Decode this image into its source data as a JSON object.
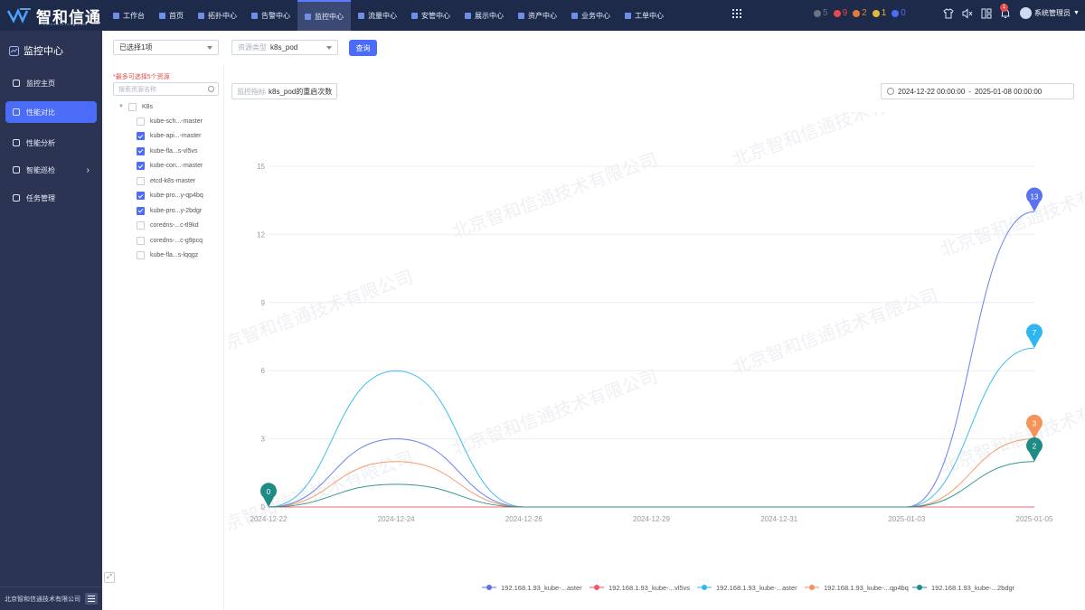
{
  "brand": {
    "name": "智和信通",
    "sub": "zhiheXinTong.com"
  },
  "topnav": [
    {
      "label": "工作台",
      "active": false
    },
    {
      "label": "首页",
      "active": false
    },
    {
      "label": "拓扑中心",
      "active": false
    },
    {
      "label": "告警中心",
      "active": false
    },
    {
      "label": "监控中心",
      "active": true
    },
    {
      "label": "流量中心",
      "active": false
    },
    {
      "label": "安管中心",
      "active": false
    },
    {
      "label": "展示中心",
      "active": false
    },
    {
      "label": "资产中心",
      "active": false
    },
    {
      "label": "业务中心",
      "active": false
    },
    {
      "label": "工单中心",
      "active": false
    }
  ],
  "alerts": [
    {
      "count": "5",
      "color": "#6b7280"
    },
    {
      "count": "9",
      "color": "#e84a4a"
    },
    {
      "count": "2",
      "color": "#e07b3a"
    },
    {
      "count": "1",
      "color": "#e0b83a"
    },
    {
      "count": "0",
      "color": "#4a6cf7"
    }
  ],
  "notif_badge": "1",
  "user": {
    "name": "系统管理员"
  },
  "sidebar": {
    "title": "监控中心",
    "items": [
      {
        "label": "监控主页",
        "active": false
      },
      {
        "label": "性能对比",
        "active": true
      },
      {
        "label": "性能分析",
        "active": false
      },
      {
        "label": "智能巡检",
        "active": false,
        "has_children": true
      },
      {
        "label": "任务管理",
        "active": false
      }
    ],
    "footer": "北京智和信通技术有限公司"
  },
  "filters": {
    "selected": "已选择1项",
    "resource_type_label": "资源类型",
    "resource_type_value": "k8s_pod",
    "query_label": "查询"
  },
  "resources": {
    "warning": "*最多可选择5个资源",
    "search_placeholder": "搜索资源名称",
    "group": "K8s",
    "items": [
      {
        "label": "kube-sch...-master",
        "checked": false
      },
      {
        "label": "kube-api...-master",
        "checked": true
      },
      {
        "label": "kube-fla...s-vl5vs",
        "checked": true
      },
      {
        "label": "kube-con...-master",
        "checked": true
      },
      {
        "label": "etcd-k8s-master",
        "checked": false
      },
      {
        "label": "kube-pro...y-qp4bq",
        "checked": true
      },
      {
        "label": "kube-pro...y-2bdgr",
        "checked": true
      },
      {
        "label": "coredns-...c-tl9kd",
        "checked": false
      },
      {
        "label": "coredns-...c-g9pcq",
        "checked": false
      },
      {
        "label": "kube-fla...s-lqqgz",
        "checked": false
      }
    ]
  },
  "metric": {
    "label": "监控指标",
    "value": "k8s_pod的重启次数"
  },
  "date_range": {
    "start": "2024-12-22 00:00:00",
    "sep": "-",
    "end": "2025-01-08 00:00:00"
  },
  "watermark": "北京智和信通技术有限公司",
  "chart_data": {
    "type": "line",
    "x": [
      "2024-12-22",
      "2024-12-24",
      "2024-12-26",
      "2024-12-29",
      "2024-12-31",
      "2025-01-03",
      "2025-01-05"
    ],
    "ylim": [
      0,
      15
    ],
    "yticks": [
      0,
      3,
      6,
      9,
      12,
      15
    ],
    "grid": true,
    "legend_position": "bottom",
    "series": [
      {
        "name": "192.168.1.93_kube-...aster",
        "color": "#5b72ee",
        "values": [
          0,
          3,
          0,
          0,
          0,
          0,
          13
        ]
      },
      {
        "name": "192.168.1.93_kube-...vl5vs",
        "color": "#f0566a",
        "values": [
          0,
          0,
          0,
          0,
          0,
          0,
          0
        ]
      },
      {
        "name": "192.168.1.93_kube-...aster",
        "color": "#2eb6f0",
        "values": [
          0,
          6,
          0,
          0,
          0,
          0,
          7
        ]
      },
      {
        "name": "192.168.1.93_kube-...qp4bq",
        "color": "#f5935a",
        "values": [
          0,
          2,
          0,
          0,
          0,
          0,
          3
        ]
      },
      {
        "name": "192.168.1.93_kube-...2bdgr",
        "color": "#1e8c84",
        "values": [
          0,
          1,
          0,
          0,
          0,
          0,
          2
        ]
      }
    ],
    "markers": [
      {
        "series": 4,
        "index": 0,
        "label": "0"
      },
      {
        "series": 0,
        "index": 6,
        "label": "13"
      },
      {
        "series": 2,
        "index": 6,
        "label": "7"
      },
      {
        "series": 3,
        "index": 6,
        "label": "3"
      },
      {
        "series": 4,
        "index": 6,
        "label": "2"
      }
    ]
  }
}
